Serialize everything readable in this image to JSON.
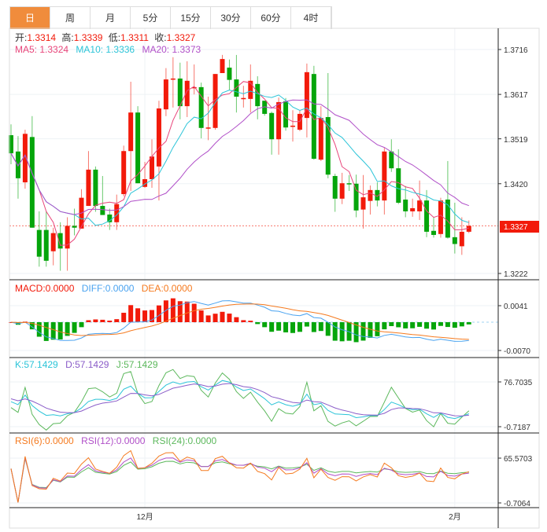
{
  "tabs": [
    {
      "label": "日"
    },
    {
      "label": "周"
    },
    {
      "label": "月"
    },
    {
      "label": "5分"
    },
    {
      "label": "15分"
    },
    {
      "label": "30分"
    },
    {
      "label": "60分"
    },
    {
      "label": "4时"
    }
  ],
  "ohlc_legend": {
    "open_label": "开:",
    "open": "1.3314",
    "high_label": "高:",
    "high": "1.3339",
    "low_label": "低:",
    "low": "1.3311",
    "close_label": "收:",
    "close": "1.3327"
  },
  "ma_legend": {
    "ma5": "MA5: 1.3324",
    "ma10": "MA10: 1.3336",
    "ma20": "MA20: 1.3373"
  },
  "macd_legend": {
    "macd": "MACD:0.0000",
    "diff": "DIFF:0.0000",
    "dea": "DEA:0.0000"
  },
  "kdj_legend": {
    "k": "K:57.1429",
    "d": "D:57.1429",
    "j": "J:57.1429"
  },
  "rsi_legend": {
    "rsi6": "RSI(6):0.0000",
    "rsi12": "RSI(12):0.0000",
    "rsi24": "RSI(24):0.0000"
  },
  "axes": {
    "price_ticks": [
      "1.3716",
      "1.3617",
      "1.3519",
      "1.3420",
      "1.3222"
    ],
    "current_price": "1.3327",
    "macd_ticks": [
      "0.0041",
      "-0.0070"
    ],
    "kdj_ticks": [
      "76.7035",
      "-0.7187"
    ],
    "rsi_ticks": [
      "65.5703",
      "-0.7064"
    ],
    "x_labels": [
      {
        "label": "12月",
        "index": 19
      },
      {
        "label": "2月",
        "index": 63
      }
    ]
  },
  "colors": {
    "up": "#f21a0a",
    "down": "#05a50b",
    "tab_active": "#f08c3c",
    "ma5": "#e8457a",
    "ma10": "#2bc4d8",
    "ma20": "#b04fc8",
    "diff": "#4aa3f0",
    "dea": "#f57a1f",
    "k": "#2bc4d8",
    "d": "#8a5cc8",
    "j": "#5cb85c",
    "rsi6": "#f57a1f",
    "rsi12": "#b04fc8",
    "rsi24": "#5cb85c"
  },
  "chart_data": {
    "type": "candlestick",
    "price_range": [
      1.3222,
      1.3716
    ],
    "candles": [
      [
        1.3527,
        1.3551,
        1.3463,
        1.3487
      ],
      [
        1.3491,
        1.3525,
        1.3387,
        1.3432
      ],
      [
        1.3423,
        1.3539,
        1.3409,
        1.353
      ],
      [
        1.3523,
        1.3569,
        1.3323,
        1.3323
      ],
      [
        1.3318,
        1.3359,
        1.3237,
        1.3259
      ],
      [
        1.3318,
        1.3359,
        1.3237,
        1.325
      ],
      [
        1.3271,
        1.3323,
        1.324,
        1.3311
      ],
      [
        1.3311,
        1.3335,
        1.3228,
        1.3277
      ],
      [
        1.3277,
        1.3346,
        1.3228,
        1.3327
      ],
      [
        1.3327,
        1.3365,
        1.3306,
        1.3323
      ],
      [
        1.3321,
        1.3408,
        1.3321,
        1.3389
      ],
      [
        1.3371,
        1.3492,
        1.3371,
        1.3451
      ],
      [
        1.3451,
        1.3458,
        1.3358,
        1.3371
      ],
      [
        1.3371,
        1.3437,
        1.3351,
        1.3351
      ],
      [
        1.3352,
        1.3365,
        1.3318,
        1.3335
      ],
      [
        1.3335,
        1.3396,
        1.3318,
        1.3375
      ],
      [
        1.3397,
        1.3504,
        1.3392,
        1.3492
      ],
      [
        1.3492,
        1.3645,
        1.3404,
        1.3577
      ],
      [
        1.3577,
        1.3591,
        1.3421,
        1.3421
      ],
      [
        1.3413,
        1.3468,
        1.3411,
        1.343
      ],
      [
        1.343,
        1.3518,
        1.3411,
        1.348
      ],
      [
        1.3458,
        1.3603,
        1.3383,
        1.3586
      ],
      [
        1.3584,
        1.3675,
        1.3569,
        1.365
      ],
      [
        1.365,
        1.3699,
        1.3588,
        1.3652
      ],
      [
        1.3652,
        1.3687,
        1.3562,
        1.3591
      ],
      [
        1.3591,
        1.369,
        1.3567,
        1.3647
      ],
      [
        1.3631,
        1.3683,
        1.3617,
        1.3633
      ],
      [
        1.3633,
        1.3643,
        1.352,
        1.3543
      ],
      [
        1.3543,
        1.3612,
        1.3516,
        1.3544
      ],
      [
        1.3543,
        1.3662,
        1.3539,
        1.3662
      ],
      [
        1.3664,
        1.3704,
        1.3664,
        1.3695
      ],
      [
        1.3676,
        1.3694,
        1.3626,
        1.3649
      ],
      [
        1.365,
        1.3704,
        1.3577,
        1.3612
      ],
      [
        1.3607,
        1.3636,
        1.3588,
        1.3609
      ],
      [
        1.3607,
        1.3683,
        1.3577,
        1.3647
      ],
      [
        1.364,
        1.3657,
        1.3562,
        1.3591
      ],
      [
        1.3603,
        1.3603,
        1.357,
        1.3574
      ],
      [
        1.3576,
        1.3579,
        1.3484,
        1.3518
      ],
      [
        1.3518,
        1.361,
        1.3484,
        1.36
      ],
      [
        1.3602,
        1.3609,
        1.3537,
        1.3544
      ],
      [
        1.3546,
        1.3582,
        1.3513,
        1.3548
      ],
      [
        1.3539,
        1.3582,
        1.3536,
        1.3574
      ],
      [
        1.3565,
        1.3685,
        1.3522,
        1.3666
      ],
      [
        1.3662,
        1.368,
        1.3473,
        1.3475
      ],
      [
        1.3473,
        1.3591,
        1.347,
        1.3565
      ],
      [
        1.3567,
        1.3664,
        1.3432,
        1.344
      ],
      [
        1.3437,
        1.3442,
        1.3358,
        1.3387
      ],
      [
        1.3387,
        1.3444,
        1.3375,
        1.3421
      ],
      [
        1.3421,
        1.3439,
        1.3404,
        1.342
      ],
      [
        1.342,
        1.344,
        1.3346,
        1.3361
      ],
      [
        1.3363,
        1.3439,
        1.3321,
        1.339
      ],
      [
        1.3382,
        1.3416,
        1.3352,
        1.3406
      ],
      [
        1.3406,
        1.3423,
        1.337,
        1.3383
      ],
      [
        1.3383,
        1.3499,
        1.3352,
        1.3491
      ],
      [
        1.3491,
        1.3518,
        1.3446,
        1.3454
      ],
      [
        1.3454,
        1.3496,
        1.3375,
        1.3378
      ],
      [
        1.3385,
        1.3415,
        1.3346,
        1.3359
      ],
      [
        1.3359,
        1.3387,
        1.3347,
        1.3366
      ],
      [
        1.3359,
        1.3427,
        1.334,
        1.3383
      ],
      [
        1.3383,
        1.3406,
        1.3302,
        1.3314
      ],
      [
        1.3316,
        1.3347,
        1.3301,
        1.3307
      ],
      [
        1.3309,
        1.3389,
        1.3301,
        1.3383
      ],
      [
        1.3385,
        1.347,
        1.3299,
        1.3301
      ],
      [
        1.3302,
        1.3378,
        1.3266,
        1.3287
      ],
      [
        1.3282,
        1.3346,
        1.3263,
        1.3314
      ],
      [
        1.3314,
        1.3339,
        1.3311,
        1.3327
      ]
    ]
  }
}
